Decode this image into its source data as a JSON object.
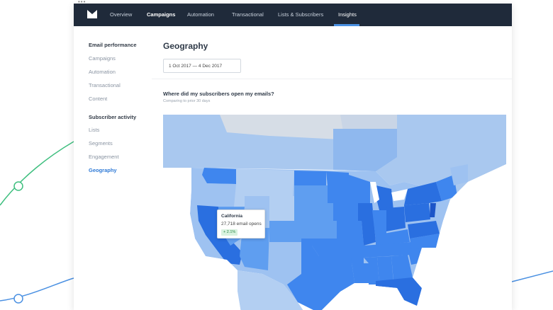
{
  "app": {
    "logo_icon": "envelope-logo-icon",
    "accent": "#4a90e2",
    "nav_bg": "#1f2a3a"
  },
  "nav": {
    "items": [
      {
        "label": "Overview"
      },
      {
        "label": "Campaigns"
      },
      {
        "label": "Automation"
      },
      {
        "label": "Transactional"
      },
      {
        "label": "Lists & Subscribers"
      },
      {
        "label": "Insights"
      }
    ],
    "active": "Insights"
  },
  "sidebar": {
    "section1": {
      "heading": "Email performance",
      "items": [
        "Campaigns",
        "Automation",
        "Transactional",
        "Content"
      ]
    },
    "section2": {
      "heading": "Subscriber activity",
      "items": [
        "Lists",
        "Segments",
        "Engagement",
        "Geography"
      ]
    },
    "active": "Geography"
  },
  "main": {
    "title": "Geography",
    "date_range": "1 Oct 2017  —  4 Dec 2017",
    "question": "Where did my subscribers open my emails?",
    "comparison": "Comparing to prior 30 days"
  },
  "tooltip": {
    "state": "California",
    "opens": "27,718 email opens",
    "change": "+ 2.1%"
  },
  "map_colors": {
    "water": "#ffffff",
    "canada": "#a9c8ef",
    "mexico": "#b3cff2",
    "light": "#9ec2f1",
    "mid": "#5f9ef0",
    "dark": "#3f86ee",
    "darker": "#2a6fe0",
    "darkest": "#1d55c8"
  }
}
